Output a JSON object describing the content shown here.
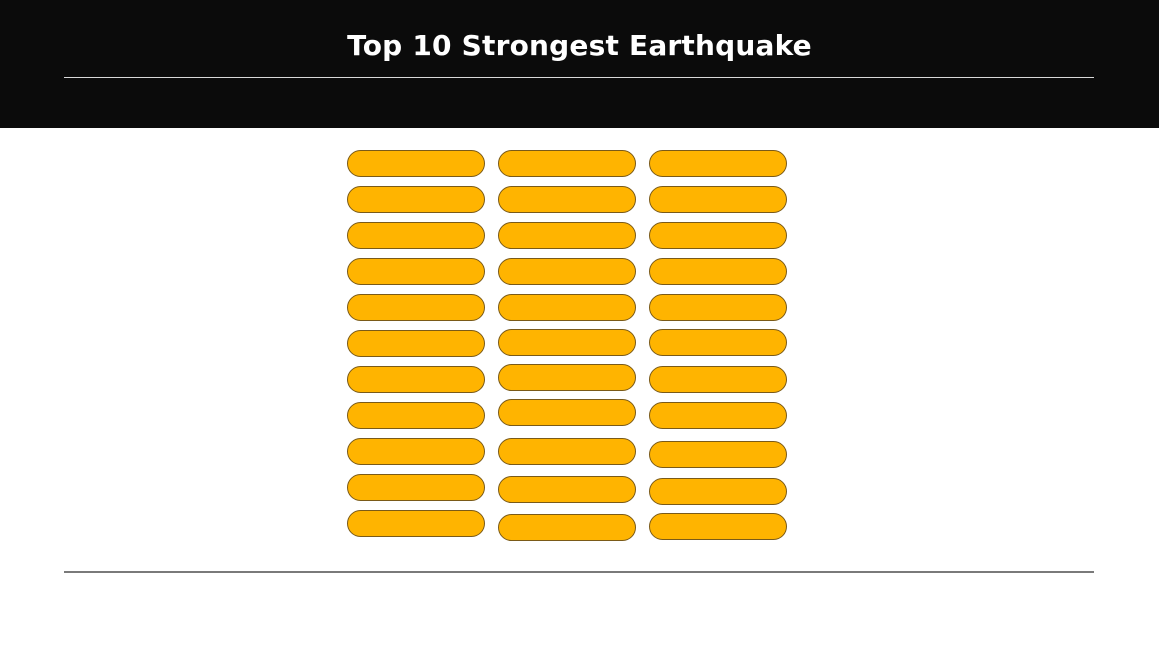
{
  "header": {
    "title": "Top 10 Strongest Earthquake"
  },
  "colors": {
    "header_background": "#0b0b0b",
    "title_text": "#ffffff",
    "pill_fill": "#ffb400",
    "pill_border": "#7a5a18",
    "rule_light": "#d9d9d9",
    "rule_dark": "#7a7a7a"
  },
  "grid": {
    "columns": 3,
    "rows": 11
  }
}
